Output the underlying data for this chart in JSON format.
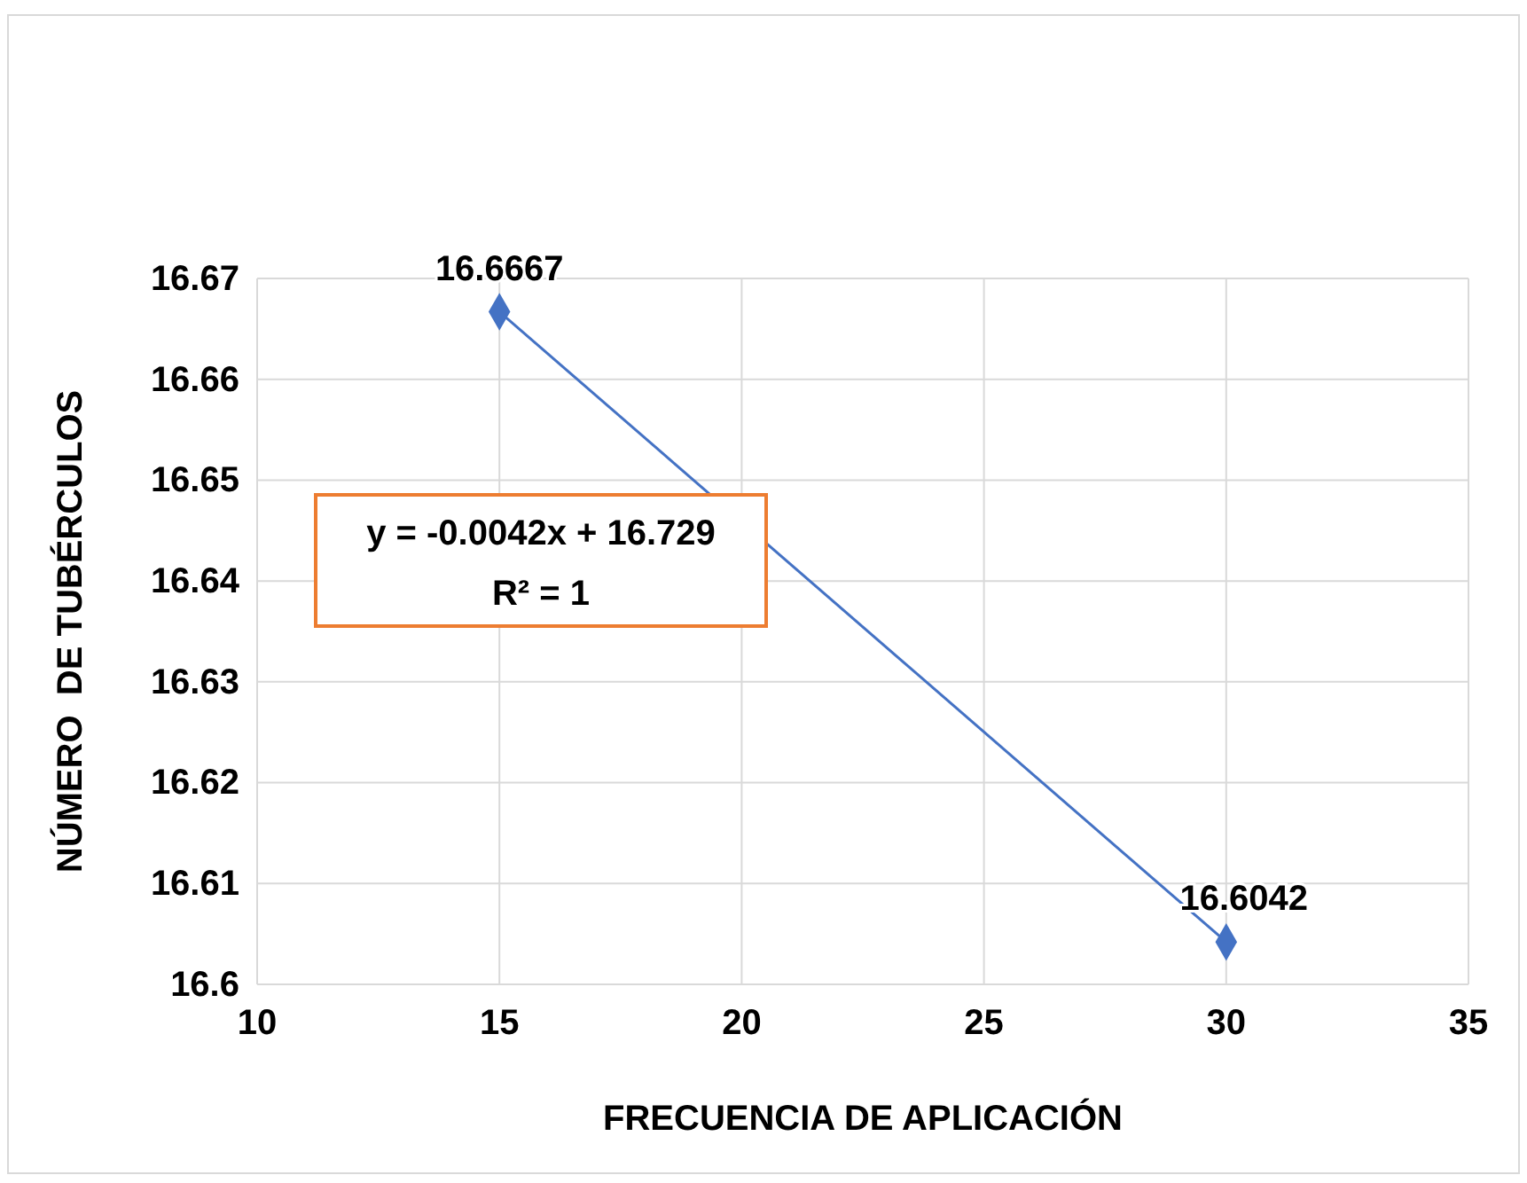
{
  "chart_data": {
    "type": "line",
    "xlabel": "FRECUENCIA DE APLICACIÓN",
    "ylabel": "NÚMERO  DE TUBÉRCULOS",
    "x": [
      15,
      30
    ],
    "series": [
      {
        "color": "#4472c4",
        "values": [
          16.6667,
          16.6042
        ]
      }
    ],
    "value_labels": [
      "16.6667",
      "16.6042"
    ],
    "marker": "diamond",
    "line_style": "solid",
    "grid": true,
    "xlim": [
      10,
      35
    ],
    "xticks": [
      10,
      15,
      20,
      25,
      30,
      35
    ],
    "ylim": [
      16.6,
      16.67
    ],
    "yticks": [
      16.6,
      16.61,
      16.62,
      16.63,
      16.64,
      16.65,
      16.66,
      16.67
    ],
    "annotations": [
      "y = -0.0042x + 16.729",
      "R² = 1"
    ]
  }
}
